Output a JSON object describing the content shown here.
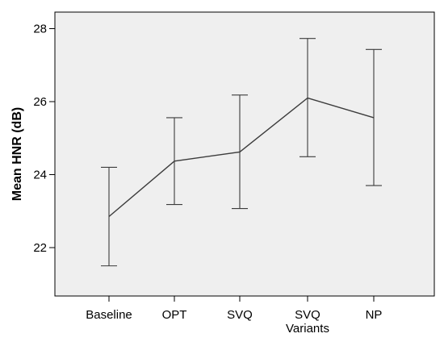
{
  "chart_data": {
    "type": "line",
    "title": "",
    "xlabel": "",
    "ylabel": "Mean HNR (dB)",
    "categories": [
      "Baseline",
      "OPT",
      "SVQ",
      "SVQ\nVariants",
      "NP"
    ],
    "category_lines": [
      [
        "Baseline"
      ],
      [
        "OPT"
      ],
      [
        "SVQ"
      ],
      [
        "SVQ",
        "Variants"
      ],
      [
        "NP"
      ]
    ],
    "series": [
      {
        "values": [
          22.85,
          24.37,
          24.62,
          26.1,
          25.56
        ],
        "error_low": [
          21.5,
          23.18,
          23.07,
          24.49,
          23.7
        ],
        "error_high": [
          24.2,
          25.56,
          26.18,
          27.73,
          27.43
        ]
      }
    ],
    "yticks": [
      22,
      24,
      26,
      28
    ],
    "ylim": [
      20.7,
      28.75
    ],
    "grid": false,
    "legend": "none",
    "colors": {
      "plot_background": "#efefef",
      "line": "#3c3c3c",
      "axis": "#000000"
    }
  }
}
